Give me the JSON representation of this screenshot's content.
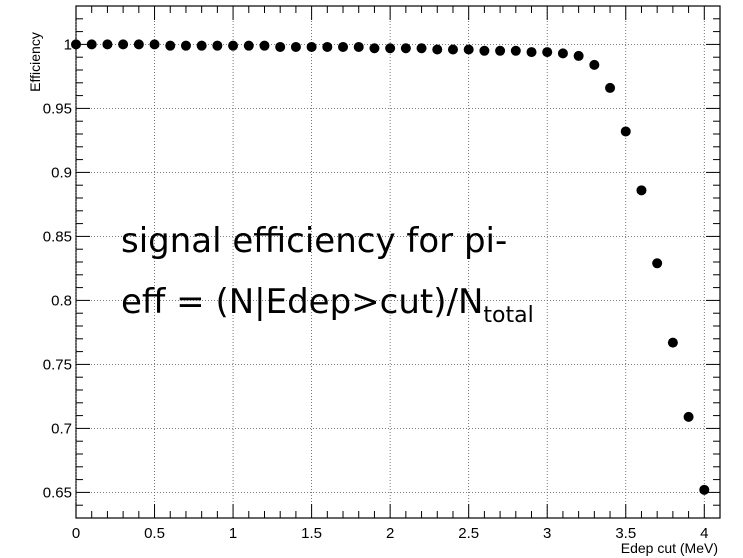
{
  "chart_data": {
    "type": "scatter",
    "title": "",
    "xlabel": "Edep cut (MeV)",
    "ylabel": "Efficiency",
    "xlim": [
      0,
      4.1
    ],
    "ylim": [
      0.63,
      1.03
    ],
    "grid": true,
    "x_ticks": [
      0,
      0.5,
      1,
      1.5,
      2,
      2.5,
      3,
      3.5,
      4
    ],
    "x_tick_labels": [
      "0",
      "0.5",
      "1",
      "1.5",
      "2",
      "2.5",
      "3",
      "3.5",
      "4"
    ],
    "y_ticks": [
      0.65,
      0.7,
      0.75,
      0.8,
      0.85,
      0.9,
      0.95,
      1
    ],
    "y_tick_labels": [
      "0.65",
      "0.7",
      "0.75",
      "0.8",
      "0.85",
      "0.9",
      "0.95",
      "1"
    ],
    "series": [
      {
        "x": [
          0,
          0.1,
          0.2,
          0.3,
          0.4,
          0.5,
          0.6,
          0.7,
          0.8,
          0.9,
          1.0,
          1.1,
          1.2,
          1.3,
          1.4,
          1.5,
          1.6,
          1.7,
          1.8,
          1.9,
          2.0,
          2.1,
          2.2,
          2.3,
          2.4,
          2.5,
          2.6,
          2.7,
          2.8,
          2.9,
          3.0,
          3.1,
          3.2,
          3.3,
          3.4,
          3.5,
          3.6,
          3.7,
          3.8,
          3.9,
          4.0
        ],
        "y": [
          1.0,
          1.0,
          1.0,
          1.0,
          1.0,
          1.0,
          0.999,
          0.999,
          0.999,
          0.999,
          0.999,
          0.999,
          0.999,
          0.998,
          0.998,
          0.998,
          0.998,
          0.998,
          0.998,
          0.997,
          0.997,
          0.997,
          0.997,
          0.996,
          0.996,
          0.996,
          0.995,
          0.995,
          0.995,
          0.994,
          0.994,
          0.993,
          0.991,
          0.984,
          0.966,
          0.932,
          0.886,
          0.829,
          0.767,
          0.709,
          0.652
        ]
      }
    ],
    "annotation": {
      "line1": "signal efficiency for pi-",
      "line2_main": "eff = (N|Edep>cut)/N",
      "line2_sub": "total"
    }
  }
}
